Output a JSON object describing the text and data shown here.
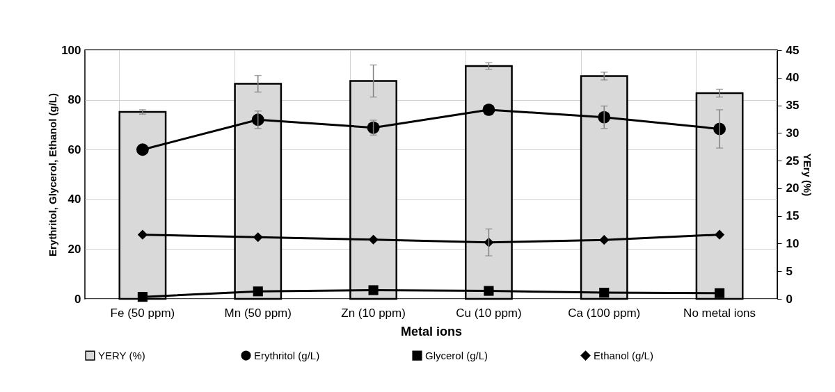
{
  "chart_data": {
    "type": "line",
    "xlabel": "Metal ions",
    "ylabel": "Erythritol, Glycerol, Ethanol (g/L)",
    "y2label": "YEry (%)",
    "categories": [
      "Fe (50 ppm)",
      "Mn (50 ppm)",
      "Zn (10 ppm)",
      "Cu (10 ppm)",
      "Ca (100 ppm)",
      "No metal ions"
    ],
    "series": [
      {
        "name": "YERY  (%)",
        "type": "bar",
        "axis": "y2",
        "color": "#d9d9d9",
        "values": [
          33.8,
          38.9,
          39.4,
          42.1,
          40.3,
          37.2
        ],
        "errors": [
          0.4,
          1.5,
          2.9,
          0.6,
          0.7,
          0.7
        ]
      },
      {
        "name": "Erythritol (g/L)",
        "color": "#000000",
        "marker": "circle",
        "values": [
          60,
          72,
          68.8,
          76,
          73,
          68.3
        ],
        "errors": [
          null,
          3.5,
          3,
          null,
          4.5,
          7.7
        ]
      },
      {
        "name": "Glycerol (g/L)",
        "color": "#000000",
        "marker": "square",
        "values": [
          0.8,
          3,
          3.5,
          3.2,
          2.5,
          2.3
        ]
      },
      {
        "name": "Ethanol (g/L)",
        "color": "#000000",
        "marker": "diamond",
        "values": [
          25.8,
          24.8,
          23.8,
          22.7,
          23.7,
          25.8
        ],
        "errors": [
          null,
          null,
          null,
          5.4,
          null,
          null
        ]
      }
    ],
    "ylim": [
      0,
      100
    ],
    "yticks": [
      0,
      20,
      40,
      60,
      80,
      100
    ],
    "y2lim": [
      0,
      45
    ],
    "y2ticks": [
      0,
      5,
      10,
      15,
      20,
      25,
      30,
      35,
      40,
      45
    ],
    "grid": true,
    "legend": "bottom"
  }
}
